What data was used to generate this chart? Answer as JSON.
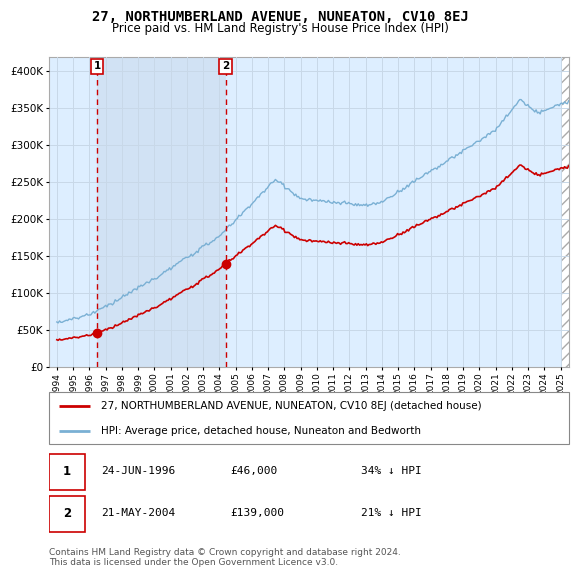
{
  "title": "27, NORTHUMBERLAND AVENUE, NUNEATON, CV10 8EJ",
  "subtitle": "Price paid vs. HM Land Registry's House Price Index (HPI)",
  "sale1_x": 1996.48,
  "sale1_price": 46000,
  "sale2_x": 2004.39,
  "sale2_price": 139000,
  "hpi_line_color": "#7ab0d4",
  "price_line_color": "#cc0000",
  "vline_color": "#cc0000",
  "legend_label1": "27, NORTHUMBERLAND AVENUE, NUNEATON, CV10 8EJ (detached house)",
  "legend_label2": "HPI: Average price, detached house, Nuneaton and Bedworth",
  "table_row1": [
    "1",
    "24-JUN-1996",
    "£46,000",
    "34% ↓ HPI"
  ],
  "table_row2": [
    "2",
    "21-MAY-2004",
    "£139,000",
    "21% ↓ HPI"
  ],
  "footer": "Contains HM Land Registry data © Crown copyright and database right 2024.\nThis data is licensed under the Open Government Licence v3.0.",
  "xmin": 1993.5,
  "xmax": 2025.5,
  "ymin": 0,
  "ymax": 420000,
  "yticks": [
    0,
    50000,
    100000,
    150000,
    200000,
    250000,
    300000,
    350000,
    400000
  ],
  "ytick_labels": [
    "£0",
    "£50K",
    "£100K",
    "£150K",
    "£200K",
    "£250K",
    "£300K",
    "£350K",
    "£400K"
  ],
  "grid_color": "#c8d8e8",
  "plot_bg": "#ddeeff",
  "hatch_bg": "#e8e8e8",
  "shade_color": "#ccddf0"
}
